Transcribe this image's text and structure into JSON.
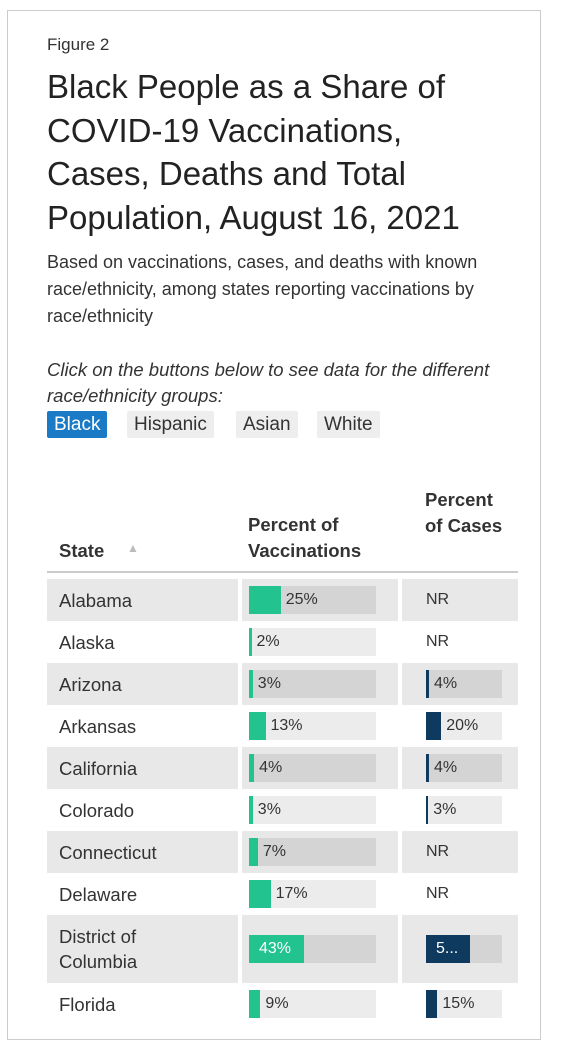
{
  "figure_label": "Figure 2",
  "title": "Black People as a Share of COVID-19 Vaccinations, Cases, Deaths and Total Population, August 16, 2021",
  "subtitle": "Based on vaccinations, cases, and deaths with known race/ethnicity, among states reporting vaccinations by race/ethnicity",
  "instruction": "Click on the buttons below to see data for the different race/ethnicity groups:",
  "buttons": [
    "Black",
    "Hispanic",
    "Asian",
    "White"
  ],
  "active_button": 0,
  "table": {
    "columns": [
      "State",
      "Percent of Vaccinations",
      "Percent of Cases"
    ],
    "scale_max": 100,
    "vaccinations_color": "#22c38e",
    "cases_color": "#0d3a5e",
    "rows": [
      {
        "state": "Alabama",
        "vaccinations": 25,
        "vaccinations_label": "25%",
        "cases": null,
        "cases_label": "NR"
      },
      {
        "state": "Alaska",
        "vaccinations": 2,
        "vaccinations_label": "2%",
        "cases": null,
        "cases_label": "NR"
      },
      {
        "state": "Arizona",
        "vaccinations": 3,
        "vaccinations_label": "3%",
        "cases": 4,
        "cases_label": "4%"
      },
      {
        "state": "Arkansas",
        "vaccinations": 13,
        "vaccinations_label": "13%",
        "cases": 20,
        "cases_label": "20%"
      },
      {
        "state": "California",
        "vaccinations": 4,
        "vaccinations_label": "4%",
        "cases": 4,
        "cases_label": "4%"
      },
      {
        "state": "Colorado",
        "vaccinations": 3,
        "vaccinations_label": "3%",
        "cases": 3,
        "cases_label": "3%"
      },
      {
        "state": "Connecticut",
        "vaccinations": 7,
        "vaccinations_label": "7%",
        "cases": null,
        "cases_label": "NR"
      },
      {
        "state": "Delaware",
        "vaccinations": 17,
        "vaccinations_label": "17%",
        "cases": null,
        "cases_label": "NR"
      },
      {
        "state": "District of Columbia",
        "vaccinations": 43,
        "vaccinations_label": "43%",
        "cases": 58,
        "cases_label": "5..."
      },
      {
        "state": "Florida",
        "vaccinations": 9,
        "vaccinations_label": "9%",
        "cases": 15,
        "cases_label": "15%"
      }
    ]
  }
}
